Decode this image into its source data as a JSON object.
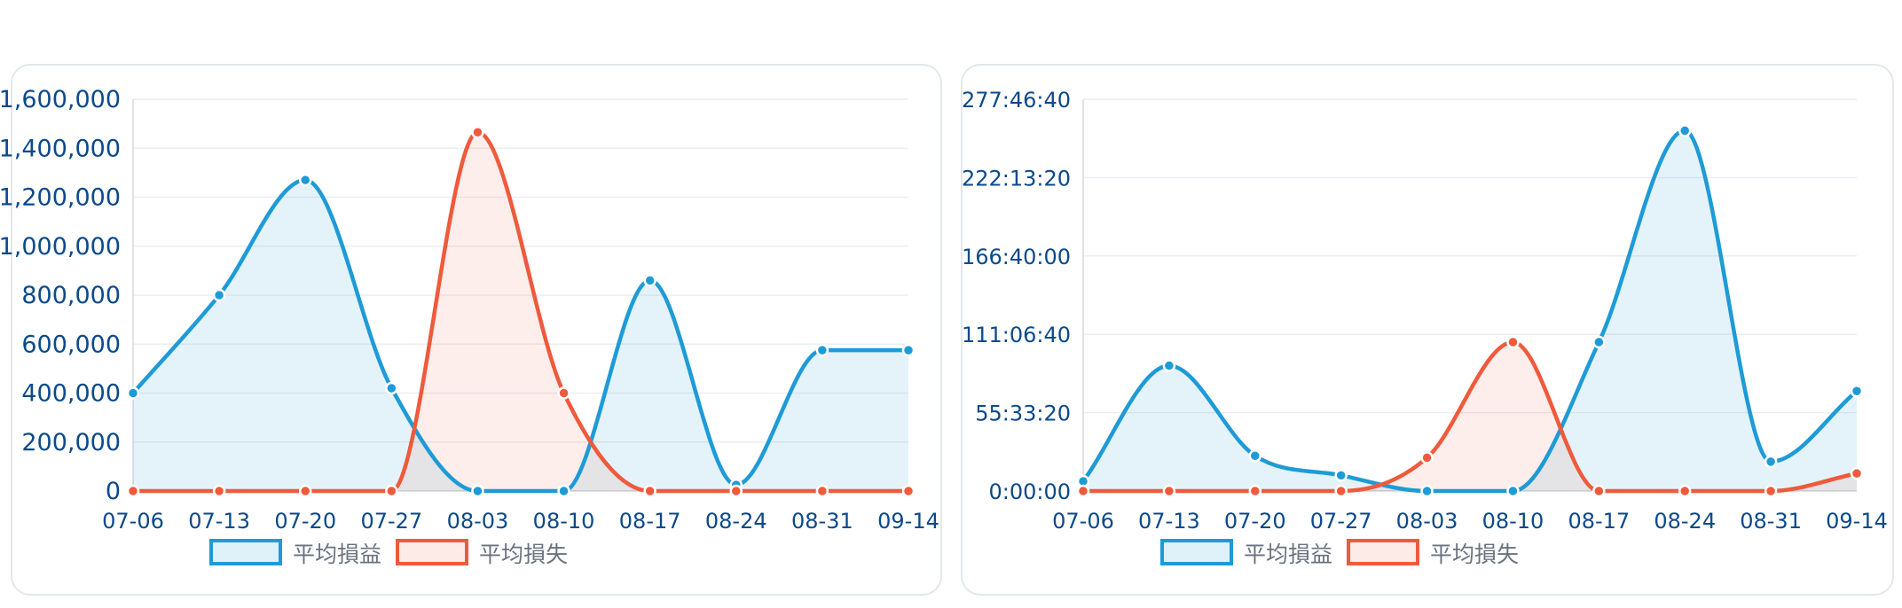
{
  "chart_data": [
    {
      "type": "area",
      "categories": [
        "07-06",
        "07-13",
        "07-20",
        "07-27",
        "08-03",
        "08-10",
        "08-17",
        "08-24",
        "08-31",
        "09-14"
      ],
      "ylim": [
        0,
        1600000
      ],
      "yticks": [
        "0",
        "200,000",
        "400,000",
        "600,000",
        "800,000",
        "1,000,000",
        "1,200,000",
        "1,400,000",
        "1,600,000"
      ],
      "grid": true,
      "legend_position": "bottom",
      "series": [
        {
          "name": "平均損益",
          "color": "#1e9bd7",
          "fill": "rgba(30,155,215,0.12)",
          "values": [
            400000,
            800000,
            1270000,
            420000,
            0,
            0,
            860000,
            25000,
            575000,
            575000
          ]
        },
        {
          "name": "平均損失",
          "color": "#ef5a3c",
          "fill": "rgba(239,90,60,0.10)",
          "values": [
            0,
            0,
            0,
            0,
            1465000,
            400000,
            0,
            0,
            0,
            0
          ]
        }
      ]
    },
    {
      "type": "area",
      "categories": [
        "07-06",
        "07-13",
        "07-20",
        "07-27",
        "08-03",
        "08-10",
        "08-17",
        "08-24",
        "08-31",
        "09-14"
      ],
      "ylim": [
        0,
        1000000
      ],
      "yticks": [
        "0:00:00",
        "55:33:20",
        "111:06:40",
        "166:40:00",
        "222:13:20",
        "277:46:40"
      ],
      "grid": true,
      "legend_position": "bottom",
      "series": [
        {
          "name": "平均損益",
          "color": "#1e9bd7",
          "fill": "rgba(30,155,215,0.12)",
          "values": [
            25000,
            320000,
            90000,
            40000,
            0,
            0,
            380000,
            920000,
            75000,
            255000
          ]
        },
        {
          "name": "平均損失",
          "color": "#ef5a3c",
          "fill": "rgba(239,90,60,0.10)",
          "values": [
            0,
            0,
            0,
            0,
            85000,
            380000,
            0,
            0,
            0,
            45000
          ]
        }
      ]
    }
  ]
}
